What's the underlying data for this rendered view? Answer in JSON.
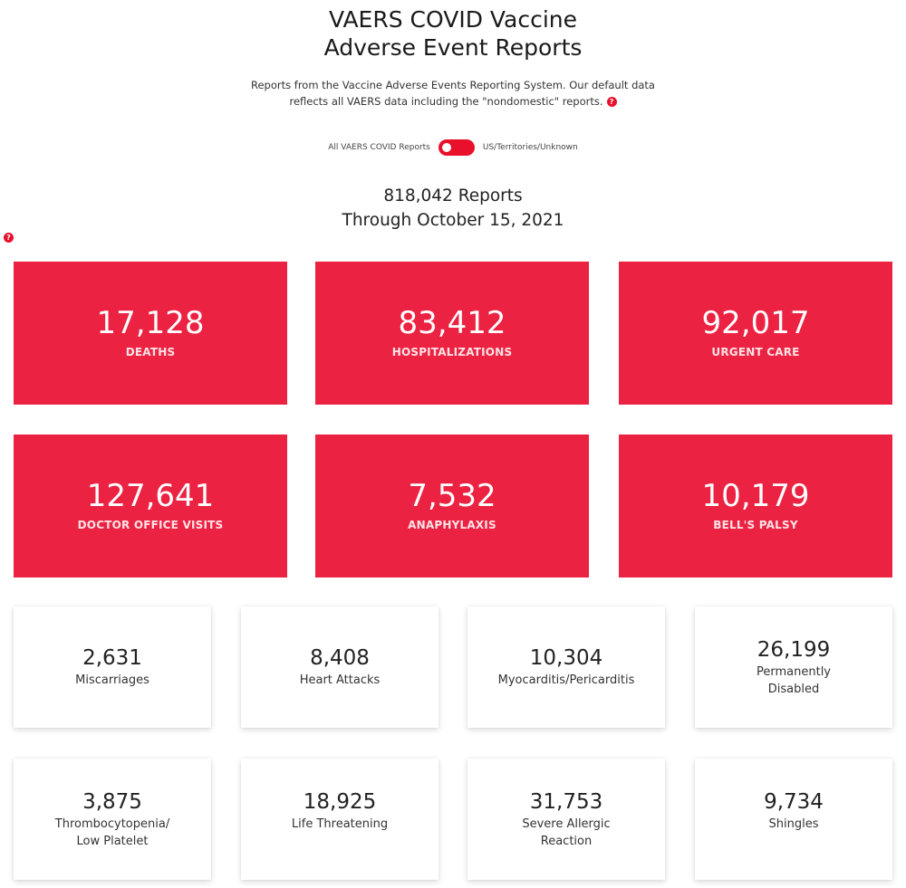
{
  "header": {
    "title_line1": "VAERS COVID Vaccine",
    "title_line2": "Adverse Event Reports",
    "description_line1": "Reports from the Vaccine Adverse Events Reporting System. Our default data",
    "description_line2": "reflects all VAERS data including the \"nondomestic\" reports.",
    "help_icon_glyph": "?"
  },
  "filter": {
    "left_label": "All VAERS COVID Reports",
    "right_label": "US/Territories/Unknown",
    "toggle_state": "All VAERS COVID Reports"
  },
  "summary": {
    "reports_line": "818,042 Reports",
    "through_line": "Through October 15, 2021",
    "help_icon_glyph": "?"
  },
  "primary_stats": [
    {
      "value": "17,128",
      "label": "DEATHS"
    },
    {
      "value": "83,412",
      "label": "HOSPITALIZATIONS"
    },
    {
      "value": "92,017",
      "label": "URGENT CARE"
    },
    {
      "value": "127,641",
      "label": "DOCTOR OFFICE VISITS"
    },
    {
      "value": "7,532",
      "label": "ANAPHYLAXIS"
    },
    {
      "value": "10,179",
      "label": "BELL'S PALSY"
    }
  ],
  "secondary_stats": [
    {
      "value": "2,631",
      "label_line1": "Miscarriages",
      "label_line2": ""
    },
    {
      "value": "8,408",
      "label_line1": "Heart Attacks",
      "label_line2": ""
    },
    {
      "value": "10,304",
      "label_line1": "Myocarditis/Pericarditis",
      "label_line2": ""
    },
    {
      "value": "26,199",
      "label_line1": "Permanently",
      "label_line2": "Disabled"
    },
    {
      "value": "3,875",
      "label_line1": "Thrombocytopenia/",
      "label_line2": "Low Platelet"
    },
    {
      "value": "18,925",
      "label_line1": "Life Threatening",
      "label_line2": ""
    },
    {
      "value": "31,753",
      "label_line1": "Severe Allergic",
      "label_line2": "Reaction"
    },
    {
      "value": "9,734",
      "label_line1": "Shingles",
      "label_line2": ""
    }
  ],
  "colors": {
    "accent": "#ec2242",
    "help_icon": "#e8102b"
  }
}
